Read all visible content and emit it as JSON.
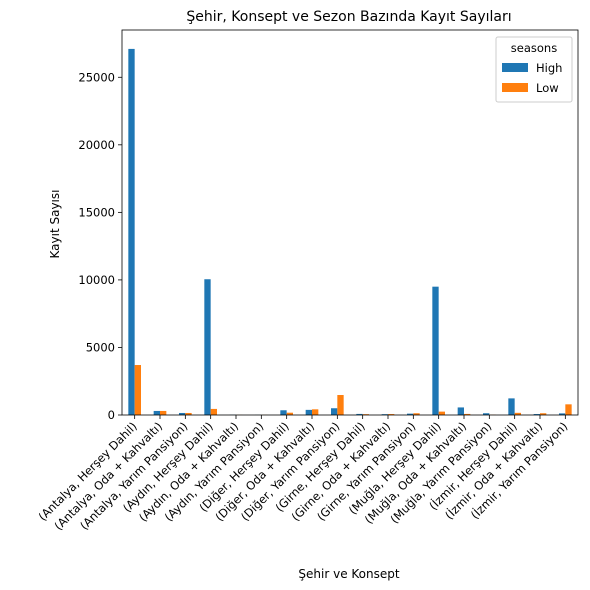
{
  "chart_data": {
    "type": "bar",
    "title": "Şehir, Konsept ve Sezon Bazında Kayıt Sayıları",
    "xlabel": "Şehir ve Konsept",
    "ylabel": "Kayıt Sayısı",
    "ylim": [
      0,
      28500
    ],
    "yticks": [
      0,
      5000,
      10000,
      15000,
      20000,
      25000
    ],
    "grid": false,
    "legend": {
      "title": "seasons",
      "placement": "top-right"
    },
    "categories": [
      "(Antalya, Herşey Dahil)",
      "(Antalya, Oda + Kahvaltı)",
      "(Antalya, Yarım Pansiyon)",
      "(Aydın, Herşey Dahil)",
      "(Aydın, Oda + Kahvaltı)",
      "(Aydın, Yarım Pansiyon)",
      "(Diğer, Herşey Dahil)",
      "(Diğer, Oda + Kahvaltı)",
      "(Diğer, Yarım Pansiyon)",
      "(Girne, Herşey Dahil)",
      "(Girne, Oda + Kahvaltı)",
      "(Girne, Yarım Pansiyon)",
      "(Muğla, Herşey Dahil)",
      "(Muğla, Oda + Kahvaltı)",
      "(Muğla, Yarım Pansiyon)",
      "(İzmir, Herşey Dahil)",
      "(İzmir, Oda + Kahvaltı)",
      "(İzmir, Yarım Pansiyon)"
    ],
    "series": [
      {
        "name": "High",
        "color": "#1f77b4",
        "values": [
          27100,
          300,
          150,
          10050,
          20,
          10,
          350,
          380,
          500,
          80,
          60,
          100,
          9500,
          560,
          130,
          1230,
          70,
          120
        ]
      },
      {
        "name": "Low",
        "color": "#ff7f0e",
        "values": [
          3700,
          300,
          150,
          450,
          10,
          10,
          170,
          420,
          1480,
          60,
          70,
          130,
          250,
          80,
          20,
          160,
          130,
          790
        ]
      }
    ]
  }
}
